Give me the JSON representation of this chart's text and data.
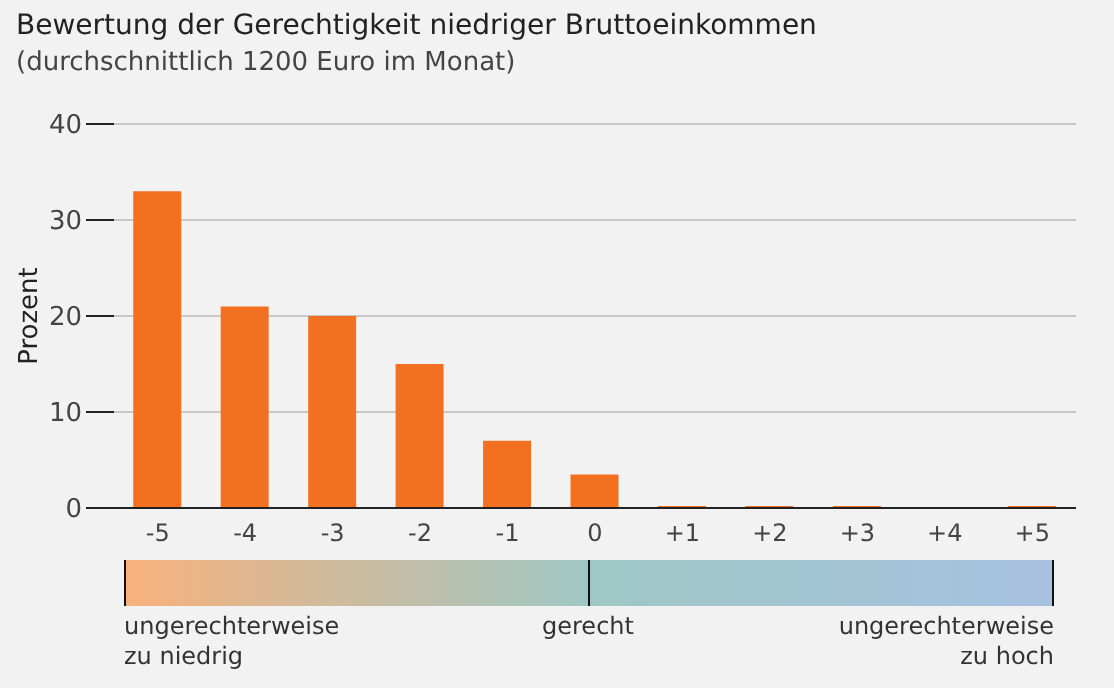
{
  "chart_data": {
    "type": "bar",
    "title": "Bewertung der Gerechtigkeit niedriger Bruttoeinkommen",
    "subtitle": "(durchschnittlich 1200 Euro im Monat)",
    "ylabel": "Prozent",
    "categories": [
      "-5",
      "-4",
      "-3",
      "-2",
      "-1",
      "0",
      "+1",
      "+2",
      "+3",
      "+4",
      "+5"
    ],
    "values": [
      33,
      21,
      20,
      15,
      7,
      3.5,
      0.2,
      0.2,
      0.2,
      0,
      0.2
    ],
    "color": "#f37021",
    "ylim": [
      0,
      40
    ],
    "yticks": [
      0,
      10,
      20,
      30,
      40
    ],
    "grid": "y",
    "annotations": [
      "ungerechterweise\nzu niedrig",
      "gerecht",
      "ungerechterweise\nzu hoch"
    ]
  }
}
